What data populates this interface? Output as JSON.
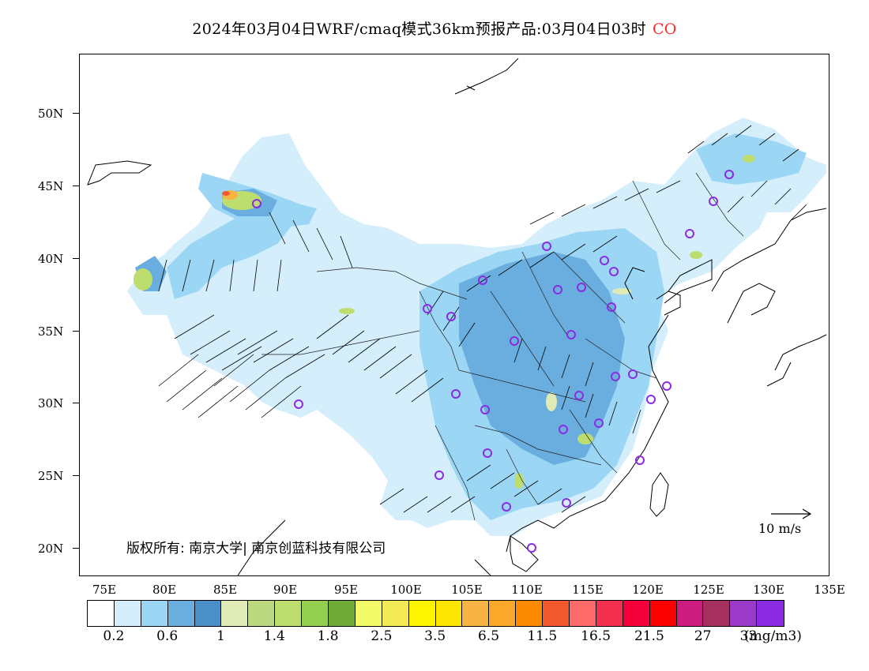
{
  "title": {
    "text": "2024年03月04日WRF/cmaq模式36km预报产品:03月04日03时",
    "species": "CO"
  },
  "axes": {
    "lat_labels": [
      "50N",
      "45N",
      "40N",
      "35N",
      "30N",
      "25N",
      "20N"
    ],
    "lon_labels": [
      "75E",
      "80E",
      "85E",
      "90E",
      "95E",
      "100E",
      "105E",
      "110E",
      "115E",
      "120E",
      "125E",
      "130E",
      "135E"
    ]
  },
  "copyright": "版权所有: 南京大学| 南京创蓝科技有限公司",
  "wind_legend": "10 m/s",
  "colorbar": {
    "colors": [
      "#ffffff",
      "#d4eefb",
      "#9cd6f5",
      "#6aaee0",
      "#4a8fc8",
      "#dfeab7",
      "#bcd97f",
      "#bedd6f",
      "#95cf4f",
      "#6faa38",
      "#f3fb6a",
      "#f4ea58",
      "#fdf400",
      "#fce500",
      "#f8b345",
      "#fba72a",
      "#fd8b00",
      "#f2592f",
      "#fe6a6a",
      "#f3304e",
      "#f5003a",
      "#fc0000",
      "#cc1c7f",
      "#a63060",
      "#9b3ac8",
      "#8b2be2"
    ],
    "labels": [
      "0.2",
      "0.6",
      "1",
      "1.4",
      "1.8",
      "2.5",
      "3.5",
      "6.5",
      "11.5",
      "16.5",
      "21.5",
      "27",
      "33"
    ],
    "unit": "(mg/m3)"
  }
}
